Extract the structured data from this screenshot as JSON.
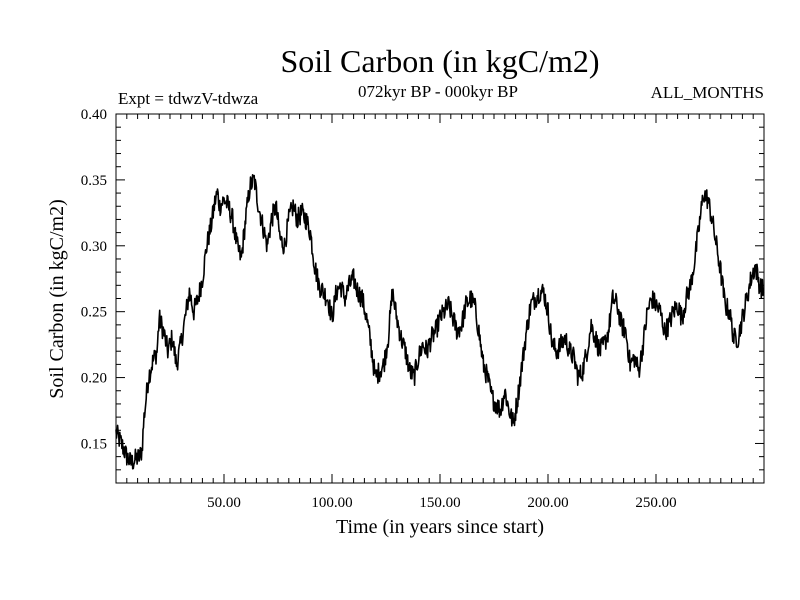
{
  "chart_data": {
    "type": "line",
    "title": "Soil Carbon (in kgC/m2)",
    "subtitle": "072kyr BP - 000kyr BP",
    "experiment": "Expt = tdwzV-tdwza",
    "months": "ALL_MONTHS",
    "xlabel": "Time (in years since start)",
    "ylabel": "Soil Carbon (in kgC/m2)",
    "xlim": [
      0,
      300
    ],
    "ylim": [
      0.12,
      0.4
    ],
    "x_ticks": [
      50,
      100,
      150,
      200,
      250
    ],
    "x_tick_labels": [
      "50.00",
      "100.00",
      "150.00",
      "200.00",
      "250.00"
    ],
    "y_ticks": [
      0.15,
      0.2,
      0.25,
      0.3,
      0.35,
      0.4
    ],
    "y_tick_labels": [
      "0.15",
      "0.20",
      "0.25",
      "0.30",
      "0.35",
      "0.40"
    ],
    "grid": false,
    "series": [
      {
        "color": "#000000",
        "noise": 0.008,
        "x": [
          0,
          1,
          3,
          5,
          7,
          9,
          11,
          12,
          13,
          15,
          17,
          19,
          20,
          22,
          24,
          26,
          28,
          30,
          32,
          34,
          36,
          38,
          40,
          42,
          44,
          46,
          47,
          48,
          50,
          52,
          54,
          56,
          58,
          60,
          62,
          64,
          66,
          68,
          70,
          72,
          74,
          76,
          78,
          80,
          82,
          84,
          86,
          88,
          90,
          92,
          94,
          96,
          98,
          100,
          102,
          104,
          106,
          108,
          110,
          112,
          114,
          116,
          118,
          120,
          122,
          124,
          126,
          128,
          130,
          132,
          134,
          136,
          138,
          140,
          142,
          144,
          146,
          148,
          150,
          152,
          154,
          156,
          158,
          160,
          162,
          164,
          166,
          168,
          170,
          172,
          174,
          176,
          178,
          180,
          182,
          184,
          186,
          188,
          190,
          192,
          194,
          196,
          198,
          200,
          202,
          204,
          206,
          208,
          210,
          212,
          214,
          216,
          218,
          220,
          222,
          224,
          226,
          228,
          230,
          232,
          234,
          236,
          238,
          240,
          242,
          244,
          246,
          248,
          250,
          252,
          254,
          256,
          258,
          260,
          262,
          264,
          266,
          268,
          270,
          272,
          274,
          276,
          278,
          280,
          282,
          284,
          286,
          288,
          290,
          292,
          294,
          296,
          298,
          300
        ],
        "y": [
          0.158,
          0.155,
          0.148,
          0.14,
          0.135,
          0.138,
          0.14,
          0.145,
          0.17,
          0.2,
          0.212,
          0.22,
          0.245,
          0.235,
          0.22,
          0.23,
          0.21,
          0.225,
          0.245,
          0.265,
          0.25,
          0.26,
          0.275,
          0.3,
          0.315,
          0.335,
          0.34,
          0.33,
          0.335,
          0.33,
          0.32,
          0.3,
          0.29,
          0.32,
          0.345,
          0.35,
          0.33,
          0.315,
          0.3,
          0.32,
          0.33,
          0.305,
          0.3,
          0.32,
          0.33,
          0.32,
          0.325,
          0.32,
          0.31,
          0.285,
          0.27,
          0.265,
          0.26,
          0.245,
          0.265,
          0.27,
          0.26,
          0.27,
          0.275,
          0.265,
          0.26,
          0.245,
          0.225,
          0.2,
          0.205,
          0.21,
          0.23,
          0.265,
          0.245,
          0.23,
          0.22,
          0.205,
          0.2,
          0.215,
          0.225,
          0.22,
          0.23,
          0.235,
          0.245,
          0.25,
          0.255,
          0.245,
          0.235,
          0.24,
          0.255,
          0.26,
          0.255,
          0.235,
          0.21,
          0.2,
          0.185,
          0.18,
          0.175,
          0.19,
          0.175,
          0.165,
          0.185,
          0.21,
          0.235,
          0.255,
          0.26,
          0.265,
          0.265,
          0.25,
          0.225,
          0.22,
          0.225,
          0.23,
          0.22,
          0.215,
          0.2,
          0.205,
          0.22,
          0.24,
          0.23,
          0.22,
          0.225,
          0.235,
          0.26,
          0.255,
          0.24,
          0.235,
          0.21,
          0.215,
          0.205,
          0.225,
          0.25,
          0.26,
          0.255,
          0.25,
          0.235,
          0.24,
          0.25,
          0.255,
          0.245,
          0.26,
          0.27,
          0.29,
          0.315,
          0.34,
          0.335,
          0.32,
          0.3,
          0.28,
          0.255,
          0.25,
          0.23,
          0.23,
          0.245,
          0.26,
          0.275,
          0.285,
          0.27,
          0.265
        ]
      }
    ]
  }
}
